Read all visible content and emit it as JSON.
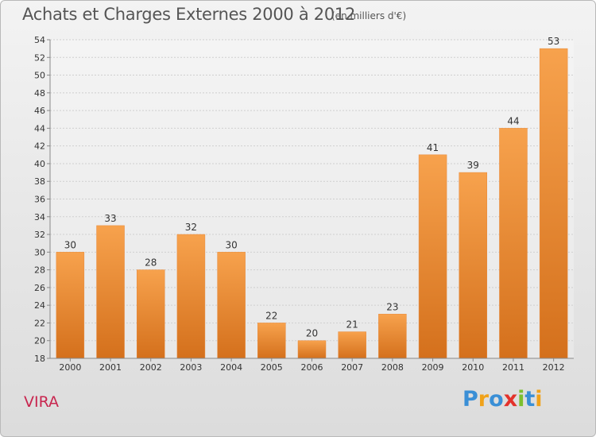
{
  "title": "Achats et Charges Externes 2000 à 2012",
  "subtitle": "(en milliers d'€)",
  "commune": "VIRA",
  "logo": {
    "letters": [
      {
        "char": "P",
        "color": "#3a8fd6"
      },
      {
        "char": "r",
        "color": "#f0a21a"
      },
      {
        "char": "o",
        "color": "#3a8fd6"
      },
      {
        "char": "x",
        "color": "#e3322b"
      },
      {
        "char": "i",
        "color": "#7cbf2f"
      },
      {
        "char": "t",
        "color": "#3a8fd6"
      },
      {
        "char": "i",
        "color": "#f0a21a"
      }
    ]
  },
  "colors": {
    "bar_light": "#f7a24d",
    "bar_dark": "#d4701c",
    "grid": "#cfcfcf",
    "axis": "#888888",
    "commune_text": "#c8264f"
  },
  "chart_data": {
    "type": "bar",
    "categories": [
      "2000",
      "2001",
      "2002",
      "2003",
      "2004",
      "2005",
      "2006",
      "2007",
      "2008",
      "2009",
      "2010",
      "2011",
      "2012"
    ],
    "values": [
      30,
      33,
      28,
      32,
      30,
      22,
      20,
      21,
      23,
      41,
      39,
      44,
      53
    ],
    "data_labels": [
      "30",
      "33",
      "28",
      "32",
      "30",
      "22",
      "20",
      "21",
      "23",
      "41",
      "39",
      "44",
      "53"
    ],
    "title": "Achats et Charges Externes 2000 à 2012",
    "xlabel": "",
    "ylabel": "",
    "ylim": [
      18,
      54
    ],
    "yticks": [
      "18",
      "20",
      "22",
      "24",
      "26",
      "28",
      "30",
      "32",
      "34",
      "36",
      "38",
      "40",
      "42",
      "44",
      "46",
      "48",
      "50",
      "52",
      "54"
    ],
    "grid": true,
    "legend": "none"
  }
}
